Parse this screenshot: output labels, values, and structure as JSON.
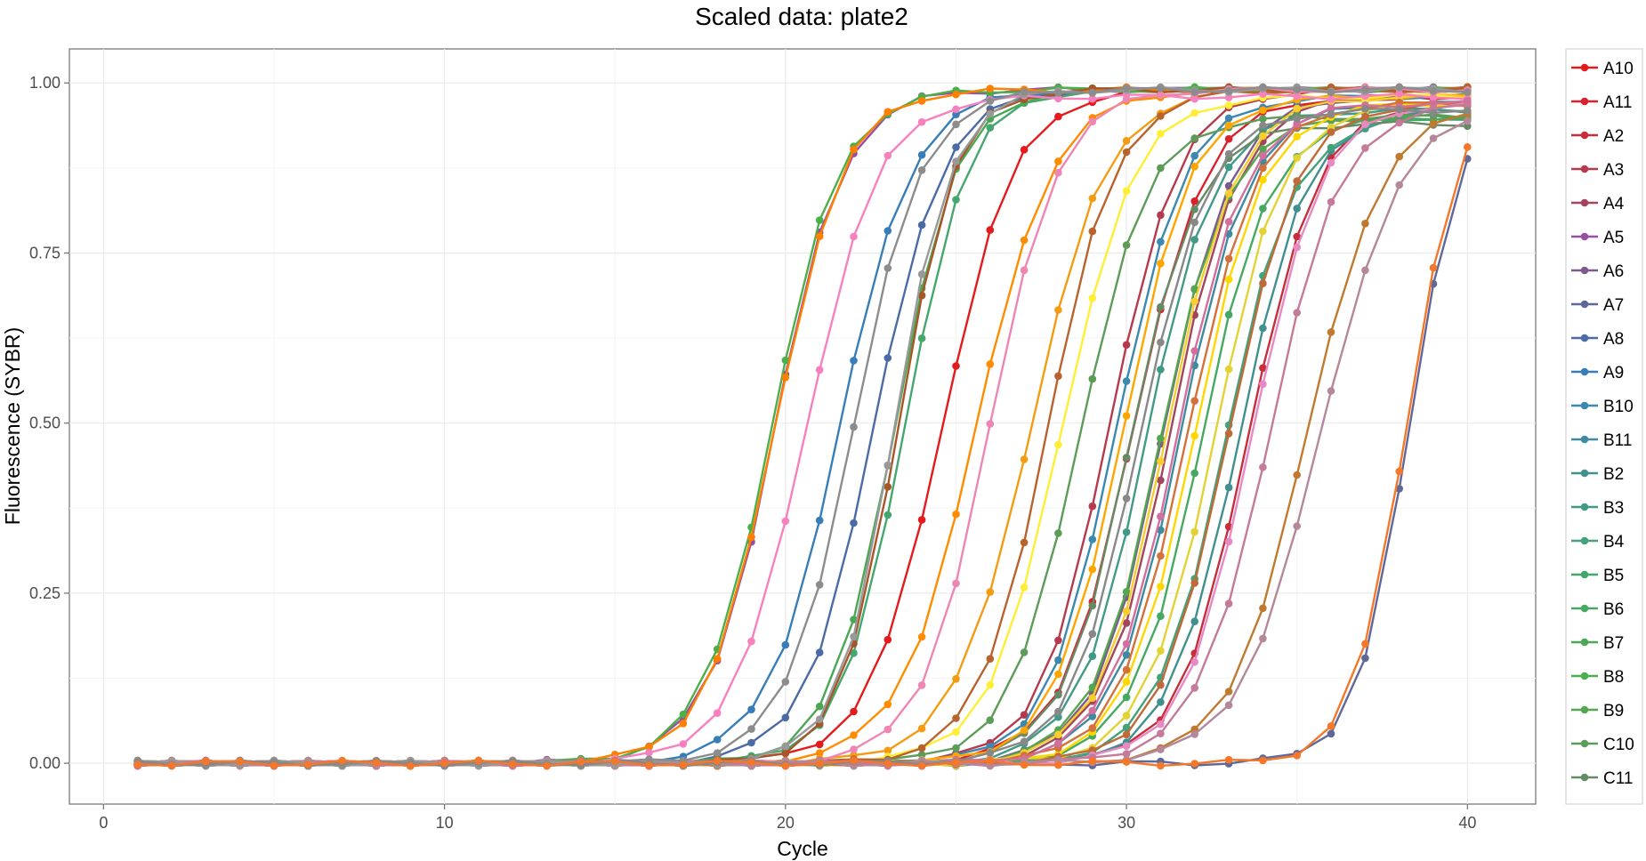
{
  "chart_data": {
    "type": "line",
    "title": "Scaled data: plate2",
    "xlabel": "Cycle",
    "ylabel": "Fluorescence (SYBR)",
    "xlim": [
      -1,
      42
    ],
    "ylim": [
      -0.06,
      1.05
    ],
    "x_ticks": [
      0,
      10,
      20,
      30,
      40
    ],
    "y_ticks": [
      0.0,
      0.25,
      0.5,
      0.75,
      1.0
    ],
    "y_tick_labels": [
      "0.00",
      "0.25",
      "0.50",
      "0.75",
      "1.00"
    ],
    "grid": true,
    "legend_position": "right",
    "x": [
      1,
      2,
      3,
      4,
      5,
      6,
      7,
      8,
      9,
      10,
      11,
      12,
      13,
      14,
      15,
      16,
      17,
      18,
      19,
      20,
      21,
      22,
      23,
      24,
      25,
      26,
      27,
      28,
      29,
      30,
      31,
      32,
      33,
      34,
      35,
      36,
      37,
      38,
      39,
      40
    ],
    "series": [
      {
        "name": "A10",
        "color": "#e41a1c",
        "midpoint": 24.6,
        "slope": 0.95,
        "plateau": 0.99
      },
      {
        "name": "A11",
        "color": "#d9222c",
        "midpoint": 30.2,
        "slope": 0.95,
        "plateau": 0.98
      },
      {
        "name": "A2",
        "color": "#c72e3c",
        "midpoint": 33.6,
        "slope": 1.0,
        "plateau": 0.97
      },
      {
        "name": "A3",
        "color": "#b63a4d",
        "midpoint": 29.5,
        "slope": 1.0,
        "plateau": 0.99
      },
      {
        "name": "A4",
        "color": "#a4455e",
        "midpoint": 31.3,
        "slope": 1.0,
        "plateau": 0.98
      },
      {
        "name": "A5",
        "color": "#984ea3",
        "midpoint": 19.7,
        "slope": 1.0,
        "plateau": 0.99
      },
      {
        "name": "A6",
        "color": "#7c5a8e",
        "midpoint": 31.1,
        "slope": 1.0,
        "plateau": 0.98
      },
      {
        "name": "A7",
        "color": "#5f6898",
        "midpoint": 38.3,
        "slope": 1.3,
        "plateau": 0.99
      },
      {
        "name": "A8",
        "color": "#4a6ba6",
        "midpoint": 22.6,
        "slope": 1.0,
        "plateau": 0.99
      },
      {
        "name": "A9",
        "color": "#377eb8",
        "midpoint": 21.6,
        "slope": 0.95,
        "plateau": 0.99
      },
      {
        "name": "B10",
        "color": "#3b88b0",
        "midpoint": 29.7,
        "slope": 1.0,
        "plateau": 0.98
      },
      {
        "name": "B11",
        "color": "#3e8aa0",
        "midpoint": 31.6,
        "slope": 1.0,
        "plateau": 0.97
      },
      {
        "name": "B2",
        "color": "#409090",
        "midpoint": 33.3,
        "slope": 1.0,
        "plateau": 0.96
      },
      {
        "name": "B3",
        "color": "#419a86",
        "midpoint": 30.6,
        "slope": 1.0,
        "plateau": 0.96
      },
      {
        "name": "B4",
        "color": "#43a27a",
        "midpoint": 32.9,
        "slope": 1.0,
        "plateau": 0.95
      },
      {
        "name": "B5",
        "color": "#45a66e",
        "midpoint": 23.5,
        "slope": 1.1,
        "plateau": 0.99
      },
      {
        "name": "B6",
        "color": "#47a862",
        "midpoint": 32.2,
        "slope": 1.0,
        "plateau": 0.95
      },
      {
        "name": "B7",
        "color": "#4aa855",
        "midpoint": 23.2,
        "slope": 1.1,
        "plateau": 0.99
      },
      {
        "name": "B8",
        "color": "#4daf4a",
        "midpoint": 19.6,
        "slope": 1.0,
        "plateau": 0.99
      },
      {
        "name": "B9",
        "color": "#55a650",
        "midpoint": 31.0,
        "slope": 1.0,
        "plateau": 0.95
      },
      {
        "name": "C10",
        "color": "#5c9c58",
        "midpoint": 28.6,
        "slope": 1.0,
        "plateau": 0.95
      },
      {
        "name": "C11",
        "color": "#668a66",
        "midpoint": 30.1,
        "slope": 1.0,
        "plateau": 0.94
      },
      {
        "name": "",
        "color": "#ff7f00",
        "midpoint": 19.7,
        "slope": 1.0,
        "plateau": 0.99
      },
      {
        "name": "",
        "color": "#ff8c00",
        "midpoint": 25.6,
        "slope": 0.9,
        "plateau": 0.99
      },
      {
        "name": "",
        "color": "#f39c12",
        "midpoint": 27.2,
        "slope": 0.9,
        "plateau": 0.99
      },
      {
        "name": "",
        "color": "#ffa500",
        "midpoint": 29.9,
        "slope": 1.0,
        "plateau": 0.98
      },
      {
        "name": "",
        "color": "#f7ce2c",
        "midpoint": 31.2,
        "slope": 1.0,
        "plateau": 0.98
      },
      {
        "name": "",
        "color": "#ffee33",
        "midpoint": 28.1,
        "slope": 0.95,
        "plateau": 0.98
      },
      {
        "name": "",
        "color": "#e2d234",
        "midpoint": 32.6,
        "slope": 1.0,
        "plateau": 0.97
      },
      {
        "name": "",
        "color": "#ffd700",
        "midpoint": 32.0,
        "slope": 1.0,
        "plateau": 0.97
      },
      {
        "name": "",
        "color": "#a65628",
        "midpoint": 23.3,
        "slope": 1.2,
        "plateau": 0.99
      },
      {
        "name": "",
        "color": "#b8632d",
        "midpoint": 27.7,
        "slope": 1.0,
        "plateau": 0.99
      },
      {
        "name": "",
        "color": "#c06a3a",
        "midpoint": 33.0,
        "slope": 1.0,
        "plateau": 0.97
      },
      {
        "name": "",
        "color": "#bf7a30",
        "midpoint": 35.3,
        "slope": 0.9,
        "plateau": 0.97
      },
      {
        "name": "",
        "color": "#d4703b",
        "midpoint": 31.8,
        "slope": 1.0,
        "plateau": 0.97
      },
      {
        "name": "",
        "color": "#f781bf",
        "midpoint": 20.6,
        "slope": 0.95,
        "plateau": 0.98
      },
      {
        "name": "",
        "color": "#ee86b3",
        "midpoint": 26.0,
        "slope": 1.0,
        "plateau": 0.99
      },
      {
        "name": "",
        "color": "#e78ac3",
        "midpoint": 33.7,
        "slope": 1.0,
        "plateau": 0.97
      },
      {
        "name": "",
        "color": "#d36f9c",
        "midpoint": 31.5,
        "slope": 1.0,
        "plateau": 0.97
      },
      {
        "name": "",
        "color": "#c47a98",
        "midpoint": 34.2,
        "slope": 0.95,
        "plateau": 0.97
      },
      {
        "name": "",
        "color": "#b4889a",
        "midpoint": 35.7,
        "slope": 0.85,
        "plateau": 0.97
      },
      {
        "name": "",
        "color": "#999999",
        "midpoint": 23.2,
        "slope": 1.2,
        "plateau": 0.99
      },
      {
        "name": "",
        "color": "#8c8c8c",
        "midpoint": 22.0,
        "slope": 1.0,
        "plateau": 0.99
      },
      {
        "name": "",
        "color": "#888888",
        "midpoint": 30.4,
        "slope": 1.0,
        "plateau": 0.96
      },
      {
        "name": "",
        "color": "#f4772a",
        "midpoint": 38.2,
        "slope": 1.3,
        "plateau": 0.99
      }
    ]
  }
}
